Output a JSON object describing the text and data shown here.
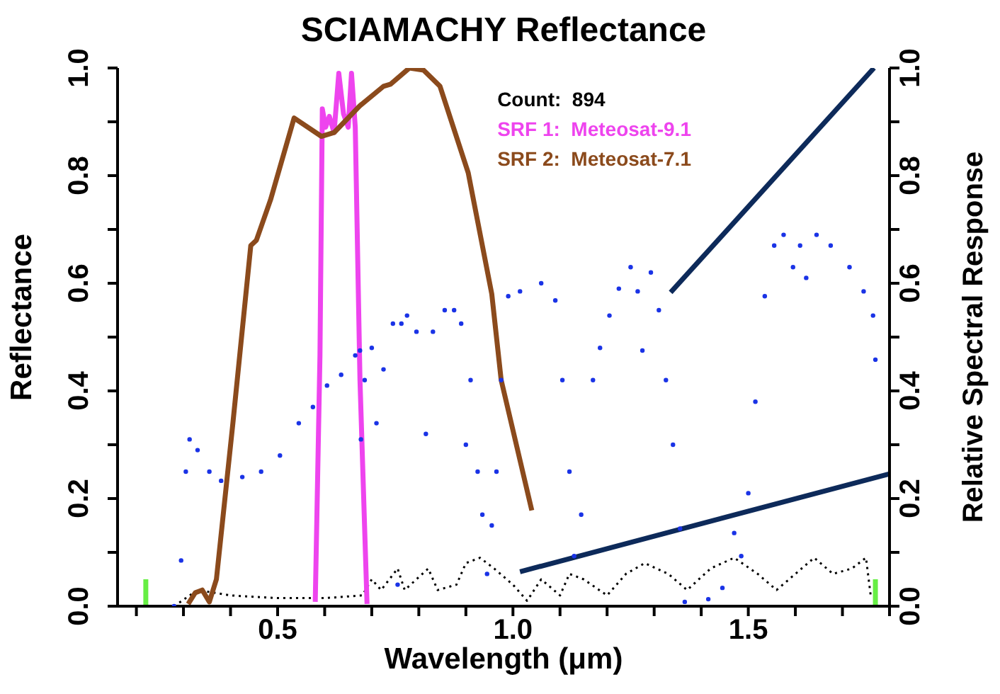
{
  "chart_data": {
    "type": "scatter",
    "title": "SCIAMACHY Reflectance",
    "xlabel": "Wavelength (μm)",
    "ylabel": "Reflectance",
    "y2label": "Relative Spectral Response",
    "annotations": [
      "Count:  894"
    ],
    "xlim": [
      0.16,
      1.8
    ],
    "xticks": [
      {
        "value": 0.2,
        "label": null
      },
      {
        "value": 0.3,
        "label": null
      },
      {
        "value": 0.4,
        "label": null
      },
      {
        "value": 0.5,
        "label": "0.5"
      },
      {
        "value": 0.6,
        "label": null
      },
      {
        "value": 0.7,
        "label": null
      },
      {
        "value": 0.8,
        "label": null
      },
      {
        "value": 0.9,
        "label": null
      },
      {
        "value": 1.0,
        "label": "1.0"
      },
      {
        "value": 1.1,
        "label": null
      },
      {
        "value": 1.2,
        "label": null
      },
      {
        "value": 1.3,
        "label": null
      },
      {
        "value": 1.4,
        "label": null
      },
      {
        "value": 1.5,
        "label": "1.5"
      },
      {
        "value": 1.6,
        "label": null
      },
      {
        "value": 1.7,
        "label": null
      },
      {
        "value": 1.8,
        "label": null
      }
    ],
    "ylim": [
      0,
      1
    ],
    "yticks": [
      {
        "value": 0,
        "label": "0.0"
      },
      {
        "value": 0.1,
        "label": null
      },
      {
        "value": 0.2,
        "label": "0.2"
      },
      {
        "value": 0.3,
        "label": null
      },
      {
        "value": 0.4,
        "label": "0.4"
      },
      {
        "value": 0.5,
        "label": null
      },
      {
        "value": 0.6,
        "label": "0.6"
      },
      {
        "value": 0.7,
        "label": null
      },
      {
        "value": 0.8,
        "label": "0.8"
      },
      {
        "value": 0.9,
        "label": null
      },
      {
        "value": 1,
        "label": "1.0"
      }
    ],
    "y2lim": [
      0,
      1
    ],
    "y2ticks": [
      {
        "value": 0,
        "label": "0.0"
      },
      {
        "value": 0.1,
        "label": null
      },
      {
        "value": 0.2,
        "label": "0.2"
      },
      {
        "value": 0.3,
        "label": null
      },
      {
        "value": 0.4,
        "label": "0.4"
      },
      {
        "value": 0.5,
        "label": null
      },
      {
        "value": 0.6,
        "label": "0.6"
      },
      {
        "value": 0.7,
        "label": null
      },
      {
        "value": 0.8,
        "label": "0.8"
      },
      {
        "value": 0.9,
        "label": null
      },
      {
        "value": 1,
        "label": "1.0"
      }
    ],
    "legend": "top right",
    "series": [
      {
        "type": "line",
        "marker": "none",
        "line_style": "dotted",
        "color": "#000000",
        "x": [
          0.28,
          0.33,
          0.4,
          0.5,
          0.6,
          0.68,
          0.7,
          0.72,
          0.755,
          0.77,
          0.82,
          0.84,
          0.88,
          0.9,
          0.93,
          0.96,
          1.0,
          1.03,
          1.06,
          1.1,
          1.12,
          1.15,
          1.2,
          1.24,
          1.28,
          1.33,
          1.37,
          1.42,
          1.47,
          1.52,
          1.56,
          1.6,
          1.64,
          1.68,
          1.72,
          1.75,
          1.76
        ],
        "values": [
          0.0,
          0.03,
          0.02,
          0.015,
          0.015,
          0.02,
          0.05,
          0.03,
          0.07,
          0.03,
          0.07,
          0.03,
          0.04,
          0.08,
          0.09,
          0.07,
          0.04,
          0.01,
          0.05,
          0.02,
          0.06,
          0.05,
          0.02,
          0.06,
          0.08,
          0.06,
          0.03,
          0.07,
          0.09,
          0.06,
          0.03,
          0.06,
          0.09,
          0.06,
          0.07,
          0.09,
          0.02
        ]
      },
      {
        "marker": "circle",
        "color": "#1a33e6",
        "x": [
          0.28,
          0.295,
          0.305,
          0.313,
          0.33,
          0.355,
          0.38,
          0.425,
          0.465,
          0.505,
          0.545,
          0.575,
          0.605,
          0.635,
          0.665,
          0.675,
          0.677,
          0.685,
          0.7,
          0.71,
          0.725,
          0.745,
          0.755,
          0.763,
          0.775,
          0.795,
          0.815,
          0.83,
          0.855,
          0.875,
          0.89,
          0.9,
          0.91,
          0.925,
          0.935,
          0.945,
          0.955,
          0.965,
          0.975,
          0.99,
          1.015,
          1.06,
          1.09,
          1.105,
          1.12,
          1.13,
          1.145,
          1.17,
          1.185,
          1.205,
          1.225,
          1.25,
          1.265,
          1.275,
          1.293,
          1.31,
          1.325,
          1.34,
          1.355,
          1.365,
          1.415,
          1.445,
          1.47,
          1.485,
          1.5,
          1.515,
          1.535,
          1.555,
          1.575,
          1.595,
          1.61,
          1.623,
          1.645,
          1.675,
          1.715,
          1.745,
          1.765,
          1.77
        ],
        "values": [
          0.0,
          0.085,
          0.25,
          0.31,
          0.29,
          0.25,
          0.233,
          0.24,
          0.25,
          0.28,
          0.34,
          0.37,
          0.41,
          0.43,
          0.466,
          0.475,
          0.31,
          0.42,
          0.48,
          0.34,
          0.44,
          0.525,
          0.04,
          0.525,
          0.54,
          0.51,
          0.32,
          0.51,
          0.55,
          0.55,
          0.525,
          0.3,
          0.42,
          0.25,
          0.17,
          0.06,
          0.15,
          0.25,
          0.42,
          0.576,
          0.585,
          0.6,
          0.568,
          0.42,
          0.25,
          0.093,
          0.17,
          0.42,
          0.48,
          0.54,
          0.59,
          0.63,
          0.585,
          0.475,
          0.62,
          0.55,
          0.42,
          0.3,
          0.144,
          0.008,
          0.013,
          0.034,
          0.136,
          0.093,
          0.21,
          0.38,
          0.576,
          0.67,
          0.69,
          0.63,
          0.67,
          0.61,
          0.69,
          0.67,
          0.63,
          0.585,
          0.54,
          0.458
        ]
      },
      {
        "type": "line",
        "marker": "none",
        "axis": "y2",
        "name": "SRF 1:  Meteosat-9.1",
        "color": "#ee44ee",
        "x": [
          0.58,
          0.59,
          0.595,
          0.602,
          0.61,
          0.62,
          0.63,
          0.64,
          0.65,
          0.657,
          0.665,
          0.675,
          0.69
        ],
        "values": [
          0.008,
          0.466,
          0.924,
          0.89,
          0.91,
          0.88,
          0.99,
          0.915,
          0.89,
          0.99,
          0.89,
          0.42,
          0.004
        ]
      },
      {
        "type": "line",
        "marker": "none",
        "axis": "y2",
        "name": "SRF 2:  Meteosat-7.1",
        "color": "#8b4a1c",
        "x": [
          0.31,
          0.325,
          0.34,
          0.355,
          0.37,
          0.405,
          0.443,
          0.455,
          0.485,
          0.535,
          0.593,
          0.62,
          0.675,
          0.725,
          0.74,
          0.78,
          0.81,
          0.845,
          0.905,
          0.955,
          0.975,
          1.04
        ],
        "values": [
          0.004,
          0.025,
          0.03,
          0.008,
          0.05,
          0.34,
          0.67,
          0.68,
          0.755,
          0.907,
          0.873,
          0.88,
          0.93,
          0.966,
          0.97,
          1.0,
          0.996,
          0.966,
          0.805,
          0.58,
          0.42,
          0.178
        ]
      },
      {
        "type": "line",
        "marker": "none",
        "color": "#66ee44",
        "x": [
          0.22,
          0.22
        ],
        "values": [
          0,
          0.05
        ]
      },
      {
        "type": "line",
        "marker": "none",
        "color": "#66ee44",
        "x": [
          1.77,
          1.77
        ],
        "values": [
          0,
          0.05
        ]
      },
      {
        "type": "line",
        "marker": "none",
        "color": "#0d2a5a",
        "x": [
          1.335,
          1.767
        ],
        "values": [
          0.583,
          1.0
        ]
      },
      {
        "type": "line",
        "marker": "none",
        "color": "#0d2a5a",
        "x": [
          1.015,
          1.8
        ],
        "values": [
          0.064,
          0.246
        ]
      }
    ]
  }
}
